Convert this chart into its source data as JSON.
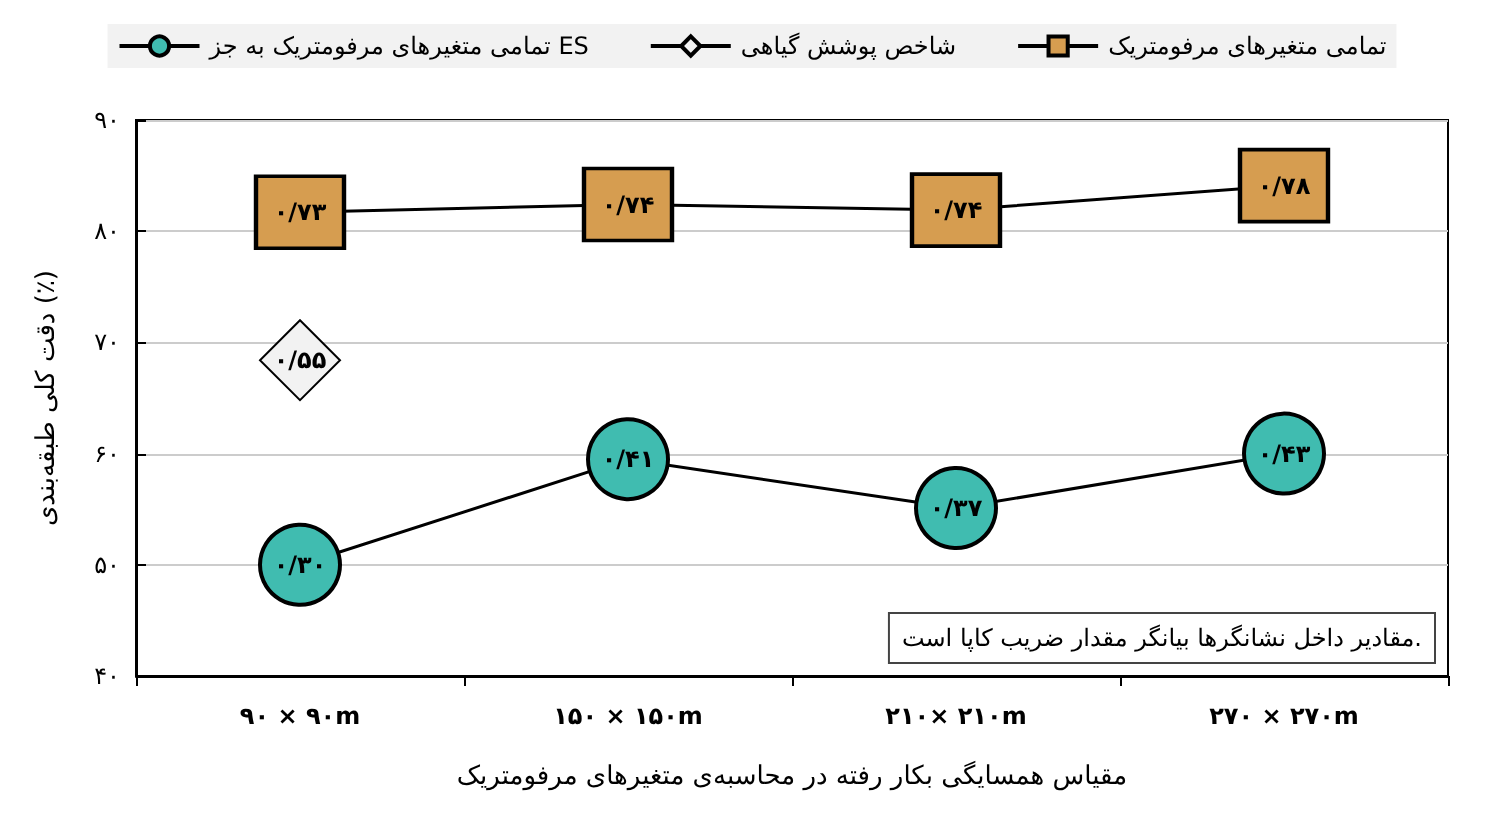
{
  "chart_data": {
    "type": "line",
    "xlabel": "مقیاس همسایگی بکار رفته در محاسبه‌ی متغیرهای مرفومتریک",
    "ylabel": "دقت کلی طبقه‌بندی (٪)",
    "categories": [
      "۹۰ × ۹۰m",
      "۱۵۰ × ۱۵۰m",
      "۲۱۰× ۲۱۰m",
      "۲۷۰ × ۲۷۰m"
    ],
    "series": [
      {
        "name": "تمامی متغیرهای مرفومتریک",
        "color": "#d69d50",
        "marker": "square",
        "values": [
          81.7,
          82.4,
          81.9,
          84.1
        ],
        "value_labels": [
          "۰/۷۳",
          "۰/۷۴",
          "۰/۷۴",
          "۰/۷۸"
        ]
      },
      {
        "name": "شاخص پوشش گیاهی",
        "color": "#f2f2f2",
        "marker": "diamond",
        "values": [
          68.4,
          null,
          null,
          null
        ],
        "value_labels": [
          "۰/۵۵",
          null,
          null,
          null
        ]
      },
      {
        "name": "تمامی متغیرهای مرفومتریک به جز ES",
        "color": "#40bcb0",
        "marker": "circle",
        "values": [
          50.0,
          59.5,
          55.1,
          60.0
        ],
        "value_labels": [
          "۰/۳۰",
          "۰/۴۱",
          "۰/۳۷",
          "۰/۴۳"
        ]
      }
    ],
    "ylim": [
      40,
      90
    ],
    "yticks": [
      {
        "value": 40,
        "label": "۴۰"
      },
      {
        "value": 50,
        "label": "۵۰"
      },
      {
        "value": 60,
        "label": "۶۰"
      },
      {
        "value": 70,
        "label": "۷۰"
      },
      {
        "value": 80,
        "label": "۸۰"
      },
      {
        "value": 90,
        "label": "۹۰"
      }
    ],
    "grid": "y",
    "legend": "top",
    "line_style": "solid",
    "annotations": [
      "مقادیر داخل نشانگرها بیانگر مقدار ضریب کاپا است."
    ]
  }
}
